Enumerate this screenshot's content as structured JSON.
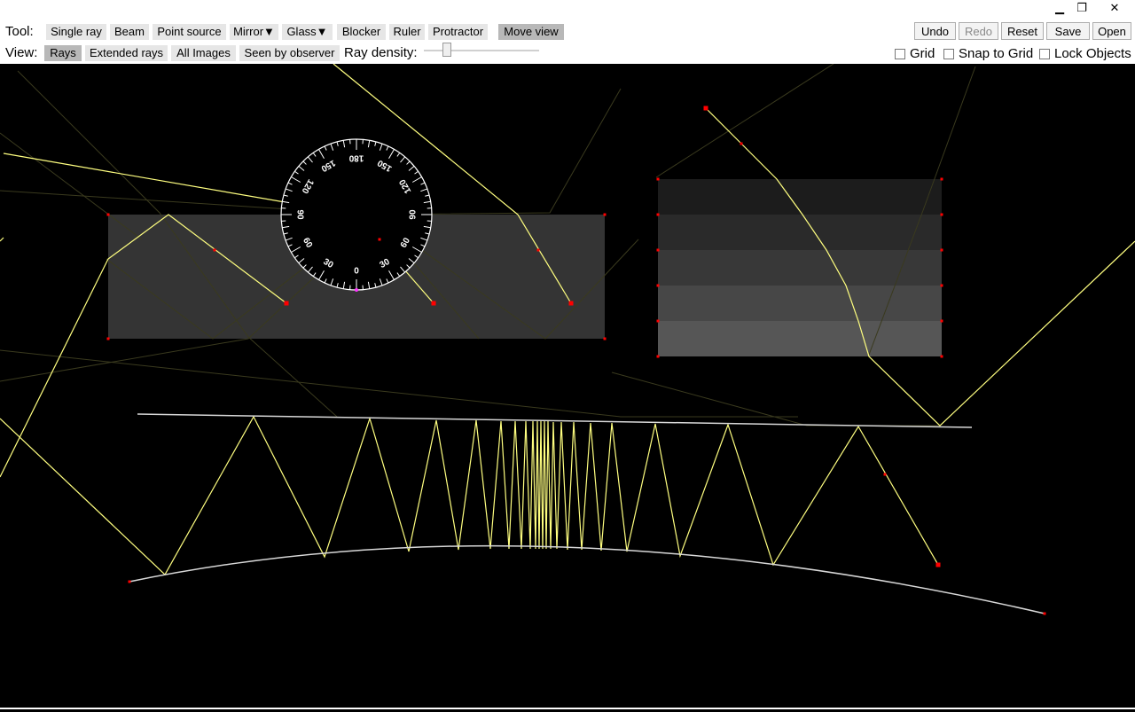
{
  "window": {
    "minimize_icon": "▁",
    "restore_icon": "❐",
    "close_icon": "✕"
  },
  "toolbar": {
    "tool_label": "Tool:",
    "tools": [
      "Single ray",
      "Beam",
      "Point source",
      "Mirror▼",
      "Glass▼",
      "Blocker",
      "Ruler",
      "Protractor",
      "Move view"
    ],
    "selected_tool": "Move view",
    "view_label": "View:",
    "views": [
      "Rays",
      "Extended rays",
      "All Images",
      "Seen by observer"
    ],
    "selected_view": "Rays",
    "ray_density_label": "Ray density:",
    "ray_density": 0.2,
    "actions": {
      "undo": "Undo",
      "redo": "Redo",
      "reset": "Reset",
      "save": "Save",
      "open": "Open"
    },
    "grid_label": "Grid",
    "snap_label": "Snap to Grid",
    "lock_label": "Lock Objects"
  },
  "protractor": {
    "labels": [
      "0",
      "30",
      "60",
      "90",
      "120",
      "150",
      "180",
      "150",
      "120",
      "90",
      "60",
      "30"
    ]
  },
  "colors": {
    "ray": "#ffff80",
    "glass": "#333333",
    "mirror": "#d8d8d8",
    "handle": "#ff0000"
  }
}
